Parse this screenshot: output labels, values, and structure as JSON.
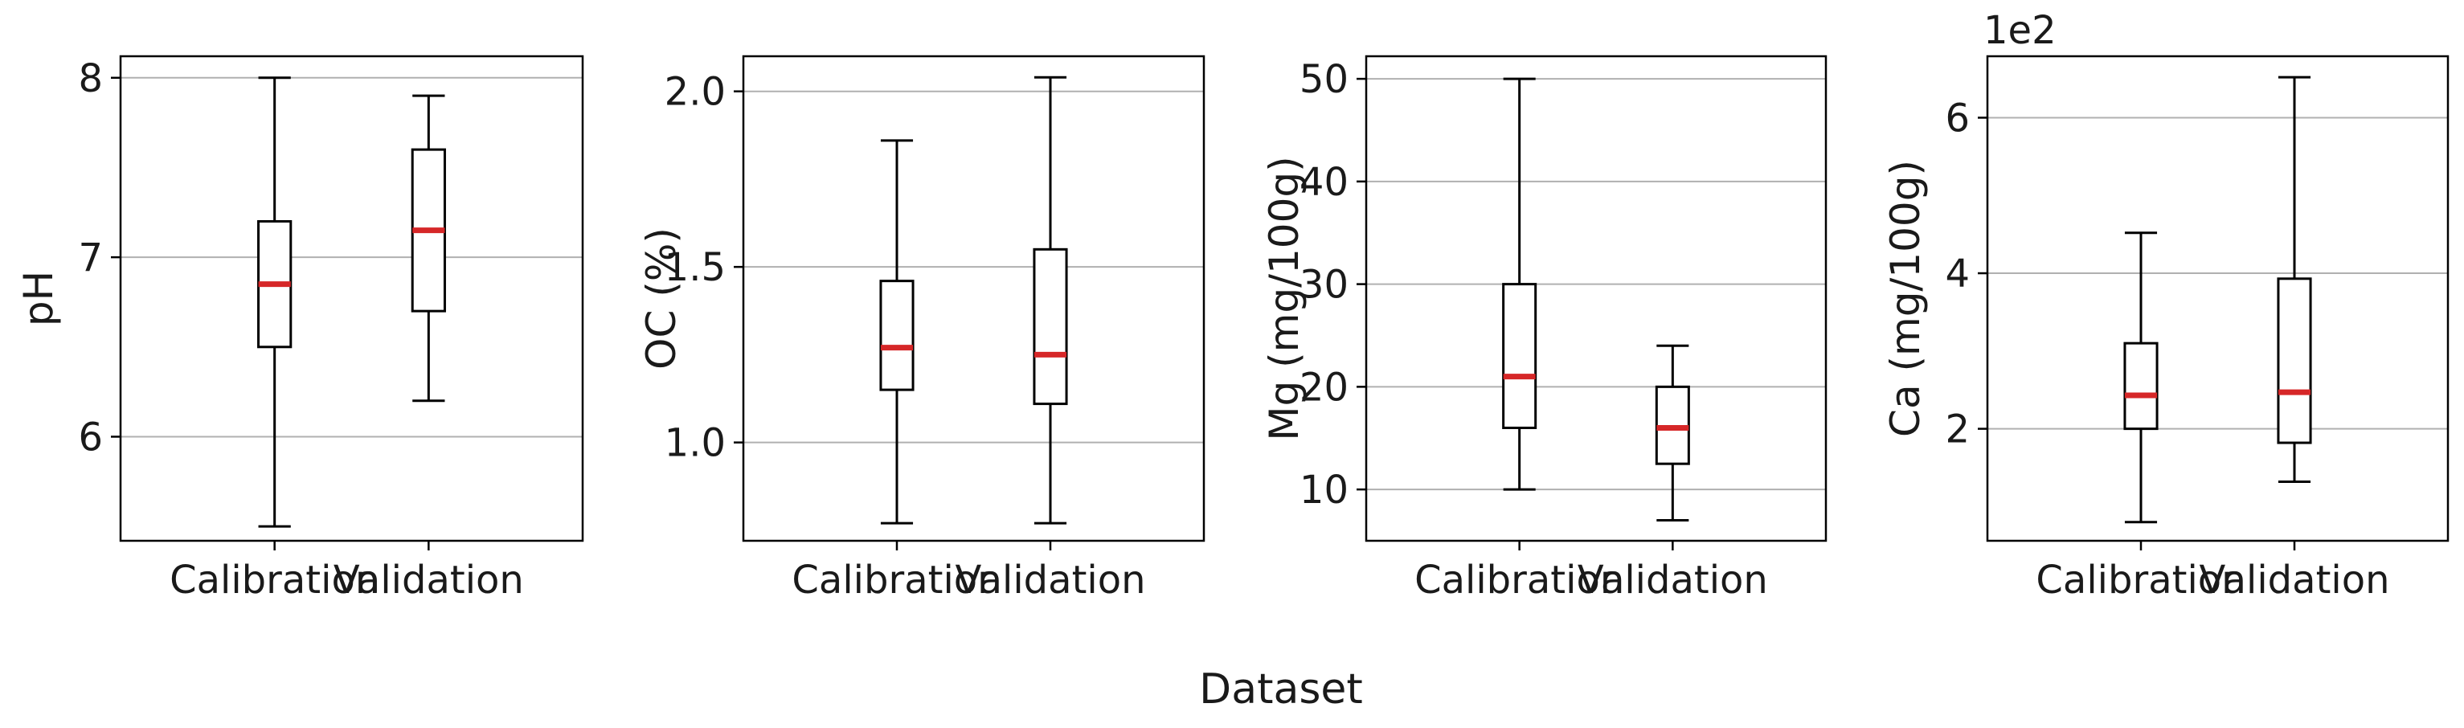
{
  "figure": {
    "xlabel": "Dataset"
  },
  "colors": {
    "median": "#d62728",
    "box": "#000000",
    "grid": "#b0b0b0"
  },
  "chart_data": [
    {
      "type": "boxplot",
      "ylabel": "pH",
      "scale_label": "",
      "categories": [
        "Calibration",
        "Validation"
      ],
      "ylim": [
        5.42,
        8.12
      ],
      "yticks": [
        6,
        7,
        8
      ],
      "ytick_labels": [
        "6",
        "7",
        "8"
      ],
      "grid": "y",
      "boxes": [
        {
          "whisker_low": 5.5,
          "q1": 6.5,
          "median": 6.85,
          "q3": 7.2,
          "whisker_high": 8.0
        },
        {
          "whisker_low": 6.2,
          "q1": 6.7,
          "median": 7.15,
          "q3": 7.6,
          "whisker_high": 7.9
        }
      ]
    },
    {
      "type": "boxplot",
      "ylabel": "OC (%)",
      "scale_label": "",
      "categories": [
        "Calibration",
        "Validation"
      ],
      "ylim": [
        0.72,
        2.1
      ],
      "yticks": [
        1.0,
        1.5,
        2.0
      ],
      "ytick_labels": [
        "1.0",
        "1.5",
        "2.0"
      ],
      "grid": "y",
      "boxes": [
        {
          "whisker_low": 0.77,
          "q1": 1.15,
          "median": 1.27,
          "q3": 1.46,
          "whisker_high": 1.86
        },
        {
          "whisker_low": 0.77,
          "q1": 1.11,
          "median": 1.25,
          "q3": 1.55,
          "whisker_high": 2.04
        }
      ]
    },
    {
      "type": "boxplot",
      "ylabel": "Mg (mg/100g)",
      "scale_label": "",
      "categories": [
        "Calibration",
        "Validation"
      ],
      "ylim": [
        5.0,
        52.2
      ],
      "yticks": [
        10,
        20,
        30,
        40,
        50
      ],
      "ytick_labels": [
        "10",
        "20",
        "30",
        "40",
        "50"
      ],
      "grid": "y",
      "boxes": [
        {
          "whisker_low": 10,
          "q1": 16,
          "median": 21,
          "q3": 30,
          "whisker_high": 50
        },
        {
          "whisker_low": 7,
          "q1": 12.5,
          "median": 16,
          "q3": 20,
          "whisker_high": 24
        }
      ]
    },
    {
      "type": "boxplot",
      "ylabel": "Ca (mg/100g)",
      "scale_label": "1e2",
      "categories": [
        "Calibration",
        "Validation"
      ],
      "ylim": [
        0.56,
        6.79
      ],
      "yticks": [
        2,
        4,
        6
      ],
      "ytick_labels": [
        "2",
        "4",
        "6"
      ],
      "grid": "y",
      "boxes": [
        {
          "whisker_low": 0.8,
          "q1": 2.0,
          "median": 2.43,
          "q3": 3.1,
          "whisker_high": 4.52
        },
        {
          "whisker_low": 1.32,
          "q1": 1.82,
          "median": 2.47,
          "q3": 3.93,
          "whisker_high": 6.52
        }
      ]
    }
  ]
}
